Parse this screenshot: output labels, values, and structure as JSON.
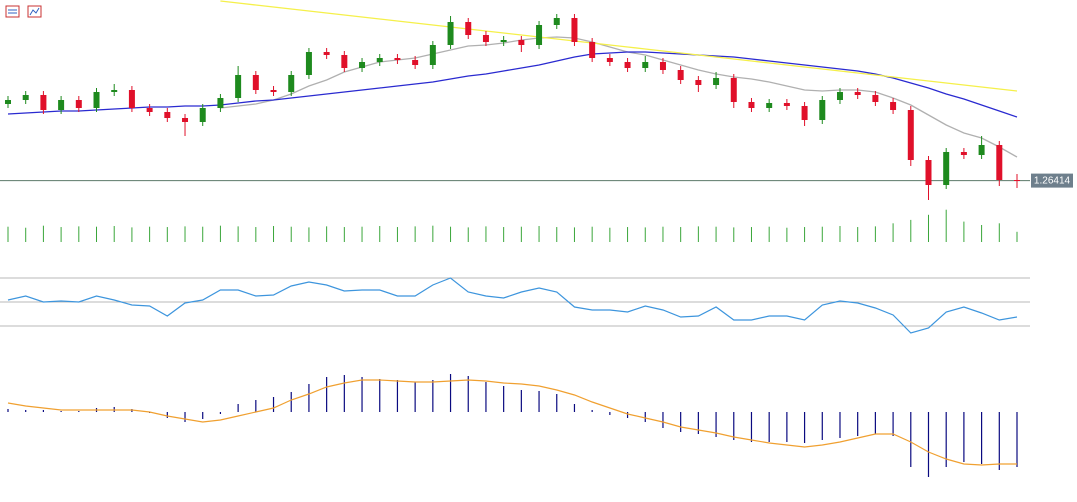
{
  "chart_data": [
    {
      "type": "candlestick",
      "up_color": "#1e8a1e",
      "down_color": "#e0102a",
      "open": [
        1.2718,
        1.2722,
        1.2727,
        1.2712,
        1.2722,
        1.2714,
        1.273,
        1.2732,
        1.2714,
        1.271,
        1.2704,
        1.27,
        1.2714,
        1.2724,
        1.2747,
        1.2732,
        1.273,
        1.2747,
        1.277,
        1.2767,
        1.2754,
        1.276,
        1.2764,
        1.2762,
        1.2757,
        1.2777,
        1.28,
        1.2787,
        1.278,
        1.2782,
        1.2777,
        1.2797,
        1.2804,
        1.278,
        1.2764,
        1.276,
        1.2754,
        1.276,
        1.2752,
        1.2742,
        1.2737,
        1.2744,
        1.272,
        1.2714,
        1.2719,
        1.2716,
        1.2702,
        1.2722,
        1.273,
        1.2727,
        1.272,
        1.2712,
        1.2662,
        1.2637,
        1.267,
        1.2667,
        1.2677,
        1.2642
      ],
      "high": [
        1.2726,
        1.2731,
        1.2731,
        1.2726,
        1.2726,
        1.2734,
        1.2738,
        1.2736,
        1.2718,
        1.2714,
        1.2708,
        1.2718,
        1.2728,
        1.2756,
        1.2751,
        1.2736,
        1.2751,
        1.2774,
        1.2774,
        1.2771,
        1.2764,
        1.2768,
        1.2768,
        1.2766,
        1.2781,
        1.2806,
        1.2804,
        1.2791,
        1.2786,
        1.2786,
        1.2801,
        1.2808,
        1.2808,
        1.2784,
        1.2768,
        1.2764,
        1.2766,
        1.2764,
        1.2756,
        1.2746,
        1.275,
        1.2748,
        1.2724,
        1.2723,
        1.2723,
        1.272,
        1.2726,
        1.2734,
        1.2734,
        1.2731,
        1.2724,
        1.2716,
        1.2666,
        1.2674,
        1.2674,
        1.2686,
        1.2681,
        1.2648
      ],
      "low": [
        1.2714,
        1.2718,
        1.2708,
        1.2708,
        1.271,
        1.271,
        1.2726,
        1.271,
        1.2706,
        1.27,
        1.2686,
        1.2696,
        1.271,
        1.272,
        1.2728,
        1.2726,
        1.2726,
        1.2743,
        1.2763,
        1.275,
        1.275,
        1.2756,
        1.2758,
        1.2753,
        1.2753,
        1.2773,
        1.2783,
        1.2776,
        1.2776,
        1.277,
        1.2773,
        1.2793,
        1.2776,
        1.276,
        1.2756,
        1.275,
        1.275,
        1.2748,
        1.2738,
        1.273,
        1.2733,
        1.2714,
        1.271,
        1.271,
        1.2712,
        1.2696,
        1.2698,
        1.2718,
        1.2723,
        1.2716,
        1.2708,
        1.2656,
        1.2622,
        1.2633,
        1.2663,
        1.2663,
        1.2636,
        1.2634
      ],
      "close": [
        1.2722,
        1.2727,
        1.2712,
        1.2722,
        1.2714,
        1.273,
        1.2732,
        1.2714,
        1.271,
        1.2704,
        1.27,
        1.2714,
        1.2724,
        1.2747,
        1.2732,
        1.273,
        1.2747,
        1.277,
        1.2767,
        1.2754,
        1.276,
        1.2764,
        1.2762,
        1.2757,
        1.2777,
        1.28,
        1.2787,
        1.278,
        1.2782,
        1.2777,
        1.2797,
        1.2804,
        1.278,
        1.2764,
        1.276,
        1.2754,
        1.276,
        1.2752,
        1.2742,
        1.2737,
        1.2744,
        1.272,
        1.2714,
        1.2719,
        1.2716,
        1.2702,
        1.2722,
        1.273,
        1.2727,
        1.272,
        1.2712,
        1.2662,
        1.2637,
        1.267,
        1.2667,
        1.2677,
        1.2642,
        1.26414
      ],
      "series": [
        {
          "color": "#b0b0b0",
          "values": [
            null,
            null,
            null,
            null,
            null,
            null,
            null,
            null,
            null,
            null,
            null,
            null,
            1.2714,
            1.2716,
            1.2718,
            1.2722,
            1.2728,
            1.2736,
            1.2742,
            1.275,
            1.2755,
            1.276,
            1.2762,
            1.2764,
            1.2768,
            1.2772,
            1.2776,
            1.2777,
            1.2779,
            1.2782,
            1.2784,
            1.2785,
            1.2784,
            1.278,
            1.2775,
            1.277,
            1.2767,
            1.2762,
            1.2757,
            1.2752,
            1.2748,
            1.2745,
            1.2743,
            1.274,
            1.2736,
            1.2732,
            1.2731,
            1.2732,
            1.2732,
            1.273,
            1.2724,
            1.2717,
            1.2707,
            1.2697,
            1.2689,
            1.2684,
            1.2675,
            1.2665
          ]
        },
        {
          "color": "#2a2ad0",
          "values": [
            1.2708,
            1.2709,
            1.271,
            1.2711,
            1.2711,
            1.2712,
            1.2713,
            1.2714,
            1.2715,
            1.2715,
            1.2716,
            1.2716,
            1.2717,
            1.2719,
            1.2721,
            1.2722,
            1.2724,
            1.2726,
            1.2728,
            1.273,
            1.2732,
            1.2734,
            1.2736,
            1.2738,
            1.274,
            1.2743,
            1.2746,
            1.2748,
            1.2751,
            1.2754,
            1.2757,
            1.2761,
            1.2765,
            1.2768,
            1.2769,
            1.277,
            1.277,
            1.2769,
            1.2768,
            1.2767,
            1.2766,
            1.2765,
            1.2763,
            1.2761,
            1.2759,
            1.2757,
            1.2755,
            1.2753,
            1.2751,
            1.2748,
            1.2744,
            1.2739,
            1.2734,
            1.2728,
            1.2723,
            1.2717,
            1.2711,
            1.2705
          ]
        },
        {
          "color": "#f5f04a",
          "values": [
            null,
            null,
            null,
            null,
            null,
            null,
            null,
            null,
            null,
            null,
            null,
            null,
            1.2821,
            1.2819,
            1.2817,
            1.2815,
            1.2813,
            1.2811,
            1.2809,
            1.2807,
            1.2805,
            1.2803,
            1.2801,
            1.2799,
            1.2797,
            1.2795,
            1.2793,
            1.2791,
            1.2789,
            1.2787,
            1.2785,
            1.2783,
            1.2781,
            1.2779,
            1.2777,
            1.2775,
            1.2773,
            1.2771,
            1.2769,
            1.2767,
            1.2765,
            1.2763,
            1.2761,
            1.2759,
            1.2757,
            1.2755,
            1.2753,
            1.2751,
            1.2749,
            1.2747,
            1.2745,
            1.2743,
            1.2741,
            1.2739,
            1.2737,
            1.2735,
            1.2733,
            1.2731
          ]
        }
      ],
      "current_price": 1.26414,
      "price_line_color": "#5b7a6a",
      "ylim": [
        1.2622,
        1.2822
      ]
    },
    {
      "type": "bar",
      "color": "#3aa63a",
      "values": [
        45,
        42,
        48,
        44,
        46,
        45,
        47,
        43,
        45,
        44,
        46,
        45,
        48,
        46,
        44,
        47,
        45,
        43,
        46,
        44,
        45,
        47,
        44,
        46,
        48,
        45,
        43,
        46,
        44,
        45,
        47,
        44,
        43,
        45,
        42,
        44,
        43,
        45,
        44,
        46,
        45,
        43,
        44,
        45,
        42,
        44,
        45,
        47,
        44,
        46,
        55,
        65,
        80,
        95,
        60,
        50,
        55,
        30
      ],
      "ylim": [
        0,
        100
      ]
    },
    {
      "type": "line",
      "levels": [
        30,
        50,
        70
      ],
      "level_color": "#b8b8b8",
      "series": [
        {
          "color": "#3d95dd",
          "values": [
            51.7,
            55.0,
            50.0,
            50.8,
            50.0,
            55.0,
            51.7,
            47.5,
            46.7,
            38.3,
            49.2,
            51.7,
            60.0,
            60.0,
            55.0,
            55.8,
            63.3,
            66.7,
            64.2,
            59.2,
            60.0,
            60.0,
            55.0,
            55.0,
            64.2,
            70.0,
            58.3,
            55.0,
            53.3,
            58.3,
            61.7,
            58.3,
            45.8,
            43.3,
            43.3,
            41.7,
            46.7,
            43.3,
            37.5,
            38.3,
            45.8,
            35.0,
            35.0,
            38.3,
            38.3,
            35.0,
            47.5,
            50.8,
            49.2,
            45.0,
            39.2,
            24.2,
            28.3,
            41.7,
            45.8,
            40.8,
            35.0,
            37.5
          ]
        }
      ],
      "ylim": [
        0,
        100
      ]
    },
    {
      "type": "macd",
      "histogram_color": "#0a0a80",
      "signal_color": "#f0a030",
      "histogram": [
        6e-05,
        4e-05,
        4e-05,
        2e-05,
        2e-05,
        8e-05,
        0.0001,
        6e-05,
        -2e-05,
        -0.00012,
        -0.0002,
        -0.00014,
        -4e-05,
        0.00016,
        0.00024,
        0.0003,
        0.0004,
        0.00056,
        0.0007,
        0.00074,
        0.0007,
        0.00066,
        0.00064,
        0.0006,
        0.00064,
        0.00076,
        0.00072,
        0.0006,
        0.00052,
        0.00044,
        0.00042,
        0.00036,
        0.00016,
        4e-05,
        -6e-05,
        -0.00012,
        -0.0002,
        -0.00032,
        -0.0004,
        -0.00044,
        -0.0005,
        -0.00056,
        -0.0006,
        -0.0006,
        -0.0006,
        -0.00062,
        -0.00056,
        -0.00052,
        -0.00048,
        -0.00044,
        -0.00048,
        -0.0011,
        -0.0013,
        -0.0011,
        -0.001,
        -0.00104,
        -0.00116,
        -0.0011
      ],
      "signal": [
        0.00018,
        0.00012,
        8e-05,
        4e-05,
        4e-05,
        4e-05,
        4e-05,
        4e-05,
        0,
        -8e-05,
        -0.00014,
        -0.0002,
        -0.00016,
        -8e-05,
        0,
        8e-05,
        0.00024,
        0.00036,
        0.0005,
        0.00058,
        0.00064,
        0.00064,
        0.00062,
        0.0006,
        0.0006,
        0.00062,
        0.00064,
        0.00062,
        0.00058,
        0.00056,
        0.00052,
        0.00044,
        0.00034,
        0.0002,
        8e-05,
        -4e-05,
        -0.00012,
        -0.0002,
        -0.0003,
        -0.00036,
        -0.00042,
        -0.0005,
        -0.00056,
        -0.00062,
        -0.00066,
        -0.0007,
        -0.00066,
        -0.0006,
        -0.00052,
        -0.00044,
        -0.00044,
        -0.0006,
        -0.0008,
        -0.00094,
        -0.00104,
        -0.00106,
        -0.00104,
        -0.00104
      ],
      "ylim": [
        -0.0014,
        0.0009
      ]
    }
  ]
}
